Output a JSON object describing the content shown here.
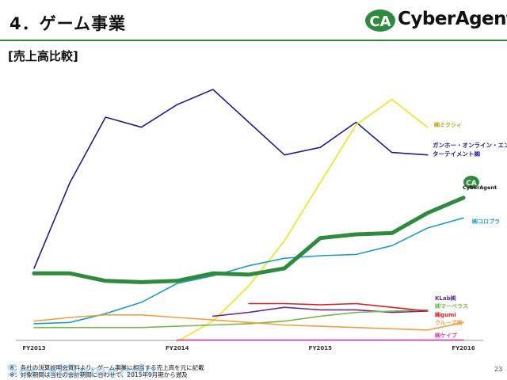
{
  "header": {
    "title": "4．ゲーム事業",
    "logo_text": "CyberAgent",
    "logo_mark": "CA",
    "accent_color": "#2e8b3d"
  },
  "subtitle": "[売上高比較]",
  "footnotes": [
    "※：各社の決算説明会資料より、ゲーム事業に相当する売上高を元に記載",
    "※：対象期間は当社の会計期間に合わせて、2015年9月期から遡及"
  ],
  "watermark": "SocialGameInfo",
  "page_number": "23",
  "chart_data": {
    "type": "line",
    "x_ticks": [
      "FY2013",
      "FY2014",
      "FY2015",
      "FY2016"
    ],
    "x": [
      "FY2013 Q1",
      "FY2013 Q2",
      "FY2013 Q3",
      "FY2013 Q4",
      "FY2014 Q1",
      "FY2014 Q2",
      "FY2014 Q3",
      "FY2014 Q4",
      "FY2015 Q1",
      "FY2015 Q2",
      "FY2015 Q3",
      "FY2015 Q4",
      "FY2016 Q1"
    ],
    "y_relative_range": [
      0,
      100
    ],
    "series": [
      {
        "name": "ガンホー・オンライン・エンターテイメント㈱",
        "color": "#1f1f87",
        "width": 1.6,
        "values": [
          28,
          62,
          88,
          84,
          93,
          99,
          86,
          73,
          76,
          86,
          74,
          73,
          null
        ]
      },
      {
        "name": "㈱ミクシィ",
        "color": "#f2e21a",
        "width": 1.6,
        "values": [
          null,
          null,
          null,
          null,
          -1,
          7,
          21,
          39,
          62,
          85,
          95,
          84,
          null
        ]
      },
      {
        "name": "CyberAgent",
        "color": "#2e8b3d",
        "width": 5,
        "values": [
          26,
          26,
          23,
          22.5,
          23,
          26,
          25.5,
          28,
          40,
          41.5,
          42,
          50,
          56
        ]
      },
      {
        "name": "㈱コロプラ",
        "color": "#1c9ec2",
        "width": 1.6,
        "values": [
          6,
          6.5,
          10,
          14.5,
          22,
          25,
          29,
          32,
          33,
          33.5,
          37,
          44,
          48
        ]
      },
      {
        "name": "KLab㈱",
        "color": "#6a2c91",
        "width": 1.6,
        "values": [
          null,
          null,
          null,
          null,
          null,
          9,
          10.5,
          12.5,
          11.5,
          11.5,
          10.5,
          11,
          null
        ]
      },
      {
        "name": "㈱マーベラス",
        "color": "#7ab648",
        "width": 1.6,
        "values": [
          4.5,
          4.5,
          4.5,
          4.5,
          5,
          5.5,
          6,
          7,
          9,
          10.5,
          11,
          11.5,
          null
        ]
      },
      {
        "name": "㈱gumi",
        "color": "#d61f26",
        "width": 1.6,
        "values": [
          null,
          null,
          null,
          null,
          null,
          null,
          14,
          14,
          13.5,
          14,
          12.5,
          11,
          null
        ]
      },
      {
        "name": "クルーズ㈱",
        "color": "#f0a040",
        "width": 1.6,
        "values": [
          7,
          8.5,
          9.5,
          9.5,
          8.5,
          7.5,
          6.5,
          5.5,
          5,
          4.5,
          4,
          3.5,
          6.5
        ]
      },
      {
        "name": "㈱ケイブ",
        "color": "#d63ca8",
        "width": 1.6,
        "values": [
          null,
          null,
          null,
          null,
          -0.5,
          -0.5,
          -0.5,
          -0.5,
          -0.5,
          -0.5,
          -0.5,
          -0.5,
          -0.5
        ]
      }
    ]
  }
}
